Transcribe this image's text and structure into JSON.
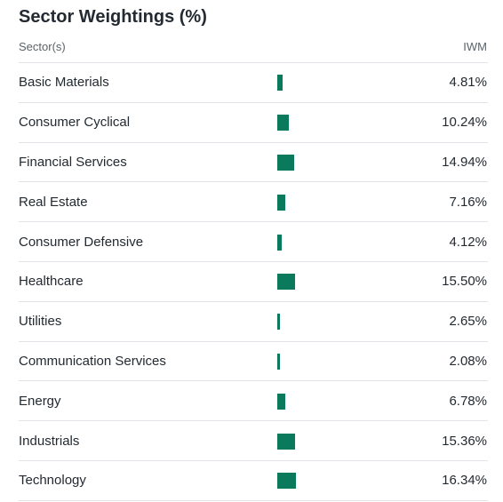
{
  "header": {
    "title": "Sector Weightings (%)",
    "col_sector": "Sector(s)",
    "col_fund": "IWM"
  },
  "bar_color": "#0b7a5c",
  "rows": [
    {
      "sector": "Basic Materials",
      "value": 4.81,
      "label": "4.81%"
    },
    {
      "sector": "Consumer Cyclical",
      "value": 10.24,
      "label": "10.24%"
    },
    {
      "sector": "Financial Services",
      "value": 14.94,
      "label": "14.94%"
    },
    {
      "sector": "Real Estate",
      "value": 7.16,
      "label": "7.16%"
    },
    {
      "sector": "Consumer Defensive",
      "value": 4.12,
      "label": "4.12%"
    },
    {
      "sector": "Healthcare",
      "value": 15.5,
      "label": "15.50%"
    },
    {
      "sector": "Utilities",
      "value": 2.65,
      "label": "2.65%"
    },
    {
      "sector": "Communication Services",
      "value": 2.08,
      "label": "2.08%"
    },
    {
      "sector": "Energy",
      "value": 6.78,
      "label": "6.78%"
    },
    {
      "sector": "Industrials",
      "value": 15.36,
      "label": "15.36%"
    },
    {
      "sector": "Technology",
      "value": 16.34,
      "label": "16.34%"
    }
  ]
}
